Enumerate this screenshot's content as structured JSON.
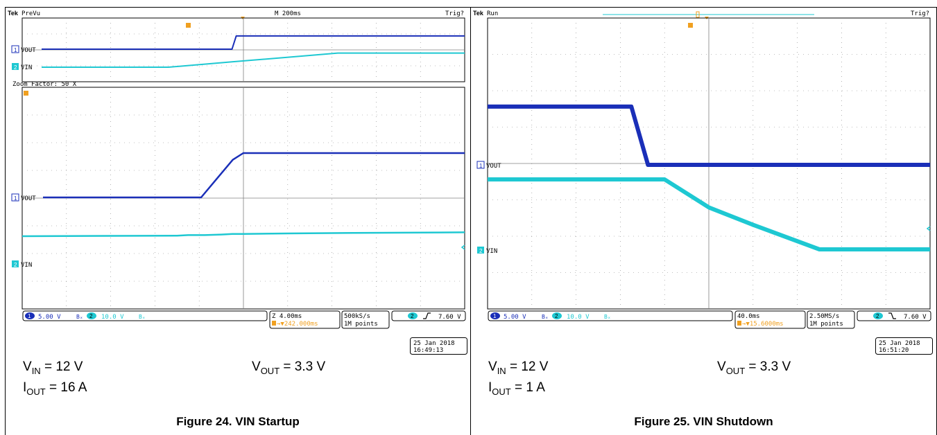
{
  "chart_data": [
    {
      "type": "line",
      "caption": "Figure 24. VIN Startup",
      "header": {
        "brand": "Tek",
        "mode": "PreVu",
        "timebase": "M 200ms",
        "trigger_state": "Trig?"
      },
      "preview": {
        "x": [
          0,
          0.1,
          0.2,
          0.3,
          0.4,
          0.45,
          0.46,
          0.5,
          0.6,
          0.7,
          0.8,
          0.9,
          1.0
        ],
        "series": [
          {
            "name": "VOUT",
            "channel": "1",
            "values": [
              0,
              0,
              0,
              0,
              0,
              0,
              3.3,
              3.3,
              3.3,
              3.3,
              3.3,
              3.3,
              3.3
            ]
          },
          {
            "name": "VIN",
            "channel": "2",
            "values": [
              0,
              0,
              0,
              0.0,
              3,
              4.5,
              4.8,
              6,
              9,
              12,
              12,
              12,
              12
            ]
          }
        ]
      },
      "zoom_label": "Zoom Factor: 50 X",
      "main": {
        "x_unit": "ms",
        "time_per_div": 4,
        "divisions": 10,
        "xlim": [
          -20,
          20
        ],
        "x": [
          -20,
          -6,
          -5,
          -3.5,
          -2,
          -1,
          0,
          4,
          10,
          20
        ],
        "series": [
          {
            "name": "VOUT",
            "channel": "1",
            "values": [
              0,
              0,
              0,
              1.4,
              2.8,
              3.3,
              3.3,
              3.3,
              3.3,
              3.3
            ]
          },
          {
            "name": "VIN",
            "channel": "2",
            "values": [
              4.6,
              4.7,
              4.8,
              4.8,
              4.9,
              5.0,
              5.0,
              5.1,
              5.2,
              5.3
            ]
          }
        ]
      },
      "status": {
        "ch1_scale": "5.00 V",
        "ch1_bw": "Bₓ",
        "ch2_scale": "10.0 V",
        "ch2_bw": "Bₓ",
        "zoom_time": "Z 4.00ms",
        "trigger_pos": "→▼242.000ms",
        "sample_rate": "500kS/s",
        "record_length": "1M points",
        "trigger_level": "7.60 V",
        "trigger_slope": "rising"
      },
      "timestamp": {
        "date": "25 Jan  2018",
        "time": "16:49:13"
      },
      "conditions": {
        "vin": "= 12 V",
        "vout": "= 3.3 V",
        "iout": "= 16 A"
      }
    },
    {
      "type": "line",
      "caption": "Figure 25. VIN Shutdown",
      "header": {
        "brand": "Tek",
        "mode": "Run",
        "trigger_state": "Trig?"
      },
      "main": {
        "x_unit": "ms",
        "time_per_div": 40,
        "divisions": 10,
        "xlim": [
          -200,
          200
        ],
        "x": [
          -200,
          -80,
          -70,
          -55,
          -40,
          0,
          40,
          100,
          200
        ],
        "series": [
          {
            "name": "VOUT",
            "channel": "1",
            "values": [
              3.3,
              3.3,
              3.3,
              0.0,
              0.0,
              0.0,
              0.0,
              0.0,
              0.0
            ]
          },
          {
            "name": "VIN",
            "channel": "2",
            "values": [
              12,
              12,
              12,
              12,
              12,
              8.0,
              5.5,
              2.0,
              2.0
            ]
          }
        ]
      },
      "status": {
        "ch1_scale": "5.00 V",
        "ch1_bw": "Bₓ",
        "ch2_scale": "10.0 V",
        "ch2_bw": "Bₓ",
        "zoom_time": "40.0ms",
        "trigger_pos": "→▼15.6000ms",
        "sample_rate": "2.50MS/s",
        "record_length": "1M points",
        "trigger_level": "7.60 V",
        "trigger_slope": "falling"
      },
      "timestamp": {
        "date": "25 Jan  2018",
        "time": "16:51:20"
      },
      "conditions": {
        "vin": "= 12 V",
        "vout": "= 3.3 V",
        "iout": "= 1 A"
      }
    }
  ],
  "colors": {
    "vout": "#1a2fb8",
    "vin": "#1ec8d2",
    "trigger": "#f0a020",
    "grid": "#808080"
  }
}
